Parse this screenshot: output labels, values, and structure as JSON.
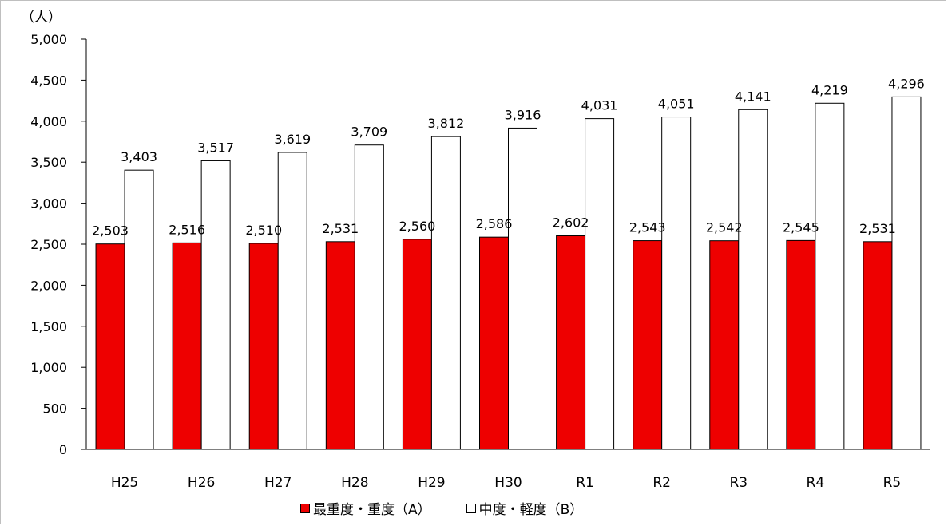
{
  "chart_data": {
    "type": "bar",
    "unit_label": "（人）",
    "categories": [
      "H25",
      "H26",
      "H27",
      "H28",
      "H29",
      "H30",
      "R1",
      "R2",
      "R3",
      "R4",
      "R5"
    ],
    "series": [
      {
        "name": "最重度・重度（A）",
        "color": "#ee0000",
        "values": [
          2503,
          2516,
          2510,
          2531,
          2560,
          2586,
          2602,
          2543,
          2542,
          2545,
          2531
        ],
        "labels": [
          "2,503",
          "2,516",
          "2,510",
          "2,531",
          "2,560",
          "2,586",
          "2,602",
          "2,543",
          "2,542",
          "2,545",
          "2,531"
        ]
      },
      {
        "name": "中度・軽度（B）",
        "color": "#ffffff",
        "values": [
          3403,
          3517,
          3619,
          3709,
          3812,
          3916,
          4031,
          4051,
          4141,
          4219,
          4296
        ],
        "labels": [
          "3,403",
          "3,517",
          "3,619",
          "3,709",
          "3,812",
          "3,916",
          "4,031",
          "4,051",
          "4,141",
          "4,219",
          "4,296"
        ]
      }
    ],
    "ylim": [
      0,
      5000
    ],
    "yticks": [
      0,
      500,
      1000,
      1500,
      2000,
      2500,
      3000,
      3500,
      4000,
      4500,
      5000
    ],
    "ytick_labels": [
      "0",
      "500",
      "1,000",
      "1,500",
      "2,000",
      "2,500",
      "3,000",
      "3,500",
      "4,000",
      "4,500",
      "5,000"
    ],
    "grid": false,
    "legend_position": "bottom"
  }
}
